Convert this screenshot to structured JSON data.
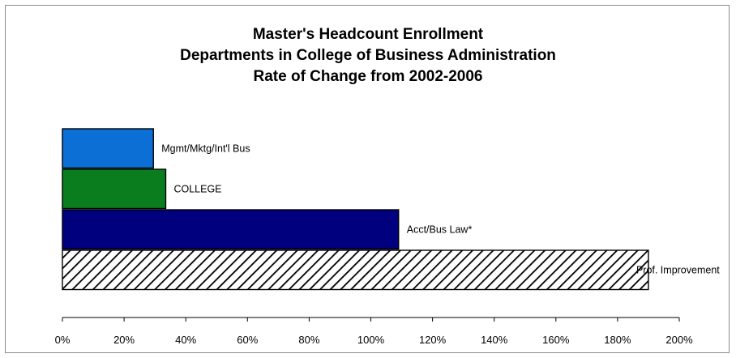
{
  "chart_data": {
    "type": "bar",
    "orientation": "horizontal",
    "title_lines": [
      "Master's Headcount Enrollment",
      "Departments in College of Business Administration",
      "Rate of Change from 2002-2006"
    ],
    "xlabel": "",
    "ylabel": "",
    "xlim": [
      0,
      2.0
    ],
    "x_ticks": [
      0,
      0.2,
      0.4,
      0.6,
      0.8,
      1.0,
      1.2,
      1.4,
      1.6,
      1.8,
      2.0
    ],
    "x_tick_labels": [
      "0%",
      "20%",
      "40%",
      "60%",
      "80%",
      "100%",
      "120%",
      "140%",
      "160%",
      "180%",
      "200%"
    ],
    "grid": false,
    "legend": "none",
    "categories": [
      "Mgmt/Mktg/Int'l Bus",
      "COLLEGE",
      "Acct/Bus Law*",
      "Prof. Improvement"
    ],
    "values": [
      0.295,
      0.335,
      1.09,
      1.9
    ],
    "colors": [
      "#0b6fd6",
      "#0a7d1e",
      "#00007f",
      "hatch"
    ]
  }
}
